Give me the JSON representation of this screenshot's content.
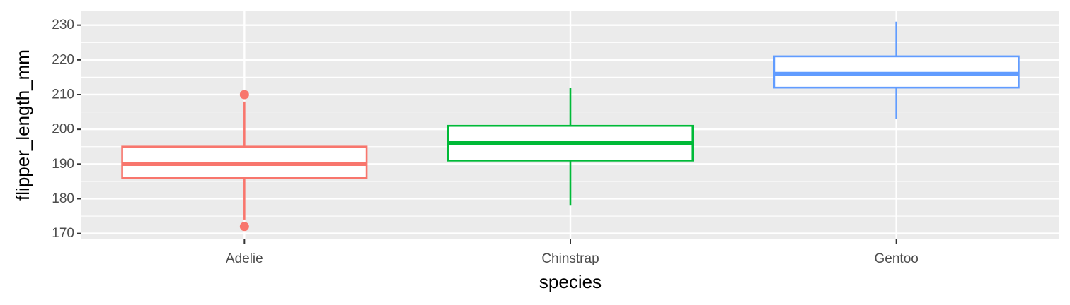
{
  "chart_data": {
    "type": "boxplot",
    "xlabel": "species",
    "ylabel": "flipper_length_mm",
    "categories": [
      "Adelie",
      "Chinstrap",
      "Gentoo"
    ],
    "ylim": [
      168.5,
      234
    ],
    "y_ticks": [
      170,
      180,
      190,
      200,
      210,
      220,
      230
    ],
    "y_minor_ticks": [
      175,
      185,
      195,
      205,
      215,
      225
    ],
    "series": [
      {
        "name": "Adelie",
        "color": "#F8766D",
        "whisker_low": 174,
        "q1": 186,
        "median": 190,
        "q3": 195,
        "whisker_high": 208,
        "outliers": [
          210,
          172
        ]
      },
      {
        "name": "Chinstrap",
        "color": "#00BA38",
        "whisker_low": 178,
        "q1": 191,
        "median": 196,
        "q3": 201,
        "whisker_high": 212,
        "outliers": []
      },
      {
        "name": "Gentoo",
        "color": "#619CFF",
        "whisker_low": 203,
        "q1": 212,
        "median": 216,
        "q3": 221,
        "whisker_high": 231,
        "outliers": []
      }
    ],
    "background_color": "#EBEBEB",
    "grid": true
  }
}
